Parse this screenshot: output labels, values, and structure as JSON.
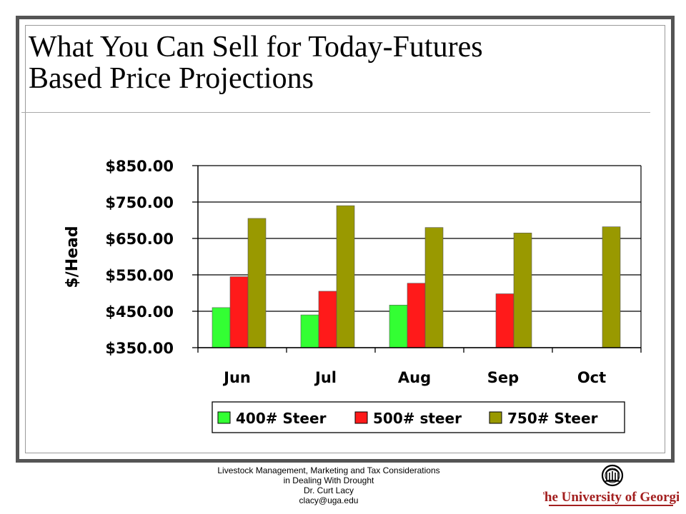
{
  "slide": {
    "title_line1": "What You Can Sell for Today-Futures",
    "title_line2": "Based Price Projections"
  },
  "footer": {
    "line1": "Livestock Management, Marketing and Tax Considerations",
    "line2": "in Dealing With Drought",
    "line3": "Dr. Curt Lacy",
    "line4": "clacy@uga.edu"
  },
  "logo": {
    "text": "The University of Georgia",
    "color": "#a31f1f"
  },
  "chart_data": {
    "type": "bar",
    "title": "",
    "xlabel": "",
    "ylabel": "$/Head",
    "ylim": [
      350,
      850
    ],
    "yticks": [
      350,
      450,
      550,
      650,
      750,
      850
    ],
    "ytick_labels": [
      "$350.00",
      "$450.00",
      "$550.00",
      "$650.00",
      "$750.00",
      "$850.00"
    ],
    "categories": [
      "Jun",
      "Jul",
      "Aug",
      "Sep",
      "Oct"
    ],
    "grid": true,
    "legend_position": "bottom",
    "series": [
      {
        "name": "400# Steer",
        "color": "#33ff33",
        "values": [
          460,
          440,
          467,
          null,
          null
        ]
      },
      {
        "name": "500# steer",
        "color": "#ff1a1a",
        "values": [
          545,
          505,
          527,
          498,
          null
        ]
      },
      {
        "name": "750# Steer",
        "color": "#999900",
        "values": [
          705,
          740,
          680,
          665,
          682
        ]
      }
    ]
  }
}
